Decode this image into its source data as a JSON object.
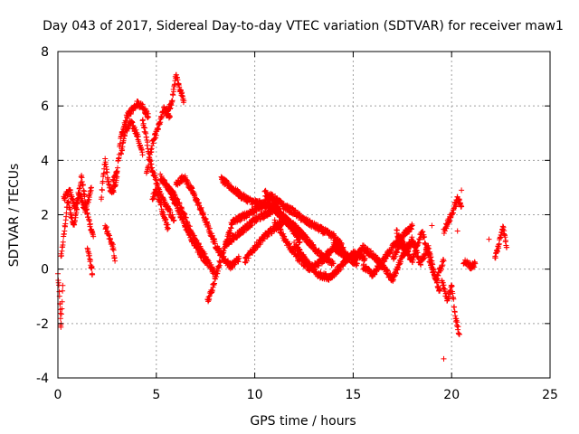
{
  "chart_data": {
    "type": "scatter",
    "title": "Day 043 of 2017, Sidereal Day-to-day VTEC variation (SDTVAR) for receiver maw1",
    "xlabel": "GPS time / hours",
    "ylabel": "SDTVAR / TECUs",
    "xlim": [
      0,
      25
    ],
    "ylim": [
      -4,
      8
    ],
    "xticks": [
      0,
      5,
      10,
      15,
      20,
      25
    ],
    "yticks": [
      -4,
      -2,
      0,
      2,
      4,
      6,
      8
    ],
    "xtick_labels": [
      "0",
      "5",
      "10",
      "15",
      "20",
      "25"
    ],
    "ytick_labels": [
      "-4",
      "-2",
      "0",
      "2",
      "4",
      "6",
      "8"
    ],
    "grid": true,
    "marker": "plus",
    "color": "#ff0000",
    "series": [
      {
        "name": "maw1",
        "tracks": [
          {
            "x": [
              0.0,
              0.1,
              0.15,
              0.25
            ],
            "y": [
              -0.2,
              -1.2,
              -2.2,
              -0.6
            ]
          },
          {
            "x": [
              0.15,
              0.3,
              0.5,
              0.8,
              1.1,
              1.4,
              1.7
            ],
            "y": [
              0.4,
              1.2,
              2.5,
              1.6,
              2.8,
              2.1,
              3.0
            ]
          },
          {
            "x": [
              0.3,
              0.6,
              0.9,
              1.2,
              1.5,
              1.8
            ],
            "y": [
              2.6,
              2.9,
              2.2,
              3.4,
              2.0,
              1.2
            ]
          },
          {
            "x": [
              1.5,
              1.6,
              1.7,
              1.75
            ],
            "y": [
              0.8,
              0.4,
              0.1,
              -0.2
            ]
          },
          {
            "x": [
              2.2,
              2.4,
              2.6,
              2.8,
              3.0
            ],
            "y": [
              2.6,
              4.0,
              3.0,
              2.8,
              3.4
            ]
          },
          {
            "x": [
              2.4,
              2.6,
              2.8,
              2.9
            ],
            "y": [
              1.6,
              1.2,
              0.8,
              0.3
            ]
          },
          {
            "x": [
              2.8,
              3.0,
              3.2,
              3.5,
              3.8,
              4.0,
              4.3,
              4.6
            ],
            "y": [
              3.2,
              3.6,
              4.8,
              5.6,
              5.9,
              6.1,
              6.0,
              5.6
            ]
          },
          {
            "x": [
              3.2,
              3.4,
              3.7,
              4.0,
              4.3
            ],
            "y": [
              4.2,
              5.0,
              5.4,
              5.0,
              4.2
            ]
          },
          {
            "x": [
              4.3,
              4.5,
              4.7,
              5.0,
              5.3,
              5.6,
              5.9
            ],
            "y": [
              5.5,
              4.8,
              3.9,
              3.2,
              2.6,
              2.2,
              1.8
            ]
          },
          {
            "x": [
              4.5,
              4.8,
              5.1,
              5.4,
              5.7
            ],
            "y": [
              3.5,
              4.6,
              5.2,
              5.9,
              5.6
            ]
          },
          {
            "x": [
              4.8,
              5.0,
              5.2,
              5.4,
              5.6
            ],
            "y": [
              2.6,
              2.9,
              2.4,
              1.9,
              1.5
            ]
          },
          {
            "x": [
              5.5,
              5.8,
              6.0,
              6.2,
              6.4
            ],
            "y": [
              5.6,
              6.2,
              7.2,
              6.6,
              6.2
            ]
          },
          {
            "x": [
              5.2,
              5.6,
              6.0,
              6.4,
              6.8,
              7.2,
              7.6
            ],
            "y": [
              3.4,
              3.0,
              2.4,
              1.7,
              1.1,
              0.6,
              0.2
            ]
          },
          {
            "x": [
              5.6,
              6.0,
              6.4,
              6.8,
              7.2,
              7.6,
              8.0
            ],
            "y": [
              3.0,
              2.6,
              2.0,
              1.3,
              0.8,
              0.3,
              -0.2
            ]
          },
          {
            "x": [
              6.0,
              6.4,
              6.8,
              7.2,
              7.6,
              8.0,
              8.4,
              8.8,
              9.2
            ],
            "y": [
              3.1,
              3.4,
              2.9,
              2.3,
              1.6,
              0.9,
              0.4,
              0.1,
              0.4
            ]
          },
          {
            "x": [
              7.6,
              7.8,
              8.0,
              8.2,
              8.5,
              8.8
            ],
            "y": [
              -1.2,
              -0.8,
              -0.3,
              0.2,
              0.9,
              1.5
            ]
          },
          {
            "x": [
              8.3,
              8.8,
              9.3,
              9.8,
              10.3,
              10.8,
              11.3,
              11.8
            ],
            "y": [
              3.3,
              3.0,
              2.7,
              2.5,
              2.4,
              2.3,
              2.0,
              1.6
            ]
          },
          {
            "x": [
              8.5,
              9.0,
              9.5,
              10.0,
              10.5,
              11.0,
              11.5,
              12.0,
              12.5,
              13.0,
              13.5,
              14.0
            ],
            "y": [
              0.9,
              1.2,
              1.5,
              1.8,
              2.0,
              2.2,
              1.9,
              1.5,
              1.2,
              0.8,
              0.4,
              0.2
            ]
          },
          {
            "x": [
              8.8,
              9.3,
              9.8,
              10.3,
              10.8,
              11.3,
              11.8,
              12.3
            ],
            "y": [
              1.7,
              1.9,
              2.1,
              2.3,
              2.6,
              2.1,
              1.6,
              1.0
            ]
          },
          {
            "x": [
              9.5,
              10.0,
              10.5,
              11.0,
              11.5,
              12.0,
              12.5,
              13.0
            ],
            "y": [
              0.3,
              0.8,
              1.2,
              1.5,
              1.8,
              1.6,
              1.2,
              0.8
            ]
          },
          {
            "x": [
              10.5,
              11.0,
              11.5,
              12.0,
              12.5,
              13.0,
              13.5,
              14.0,
              14.5
            ],
            "y": [
              2.8,
              2.6,
              2.3,
              2.1,
              1.8,
              1.6,
              1.4,
              1.2,
              0.8
            ]
          },
          {
            "x": [
              11.0,
              11.6,
              12.2,
              12.8,
              13.4,
              14.0,
              14.6,
              15.2
            ],
            "y": [
              1.8,
              1.0,
              0.4,
              0.0,
              0.3,
              0.8,
              0.5,
              0.2
            ]
          },
          {
            "x": [
              12.0,
              12.6,
              13.2,
              13.8,
              14.4,
              15.0,
              15.6
            ],
            "y": [
              0.9,
              0.3,
              -0.2,
              -0.3,
              0.1,
              0.6,
              0.4
            ]
          },
          {
            "x": [
              14.0,
              14.5,
              15.0,
              15.5,
              16.0,
              16.5,
              17.0,
              17.5,
              18.0
            ],
            "y": [
              0.9,
              0.6,
              0.3,
              0.8,
              0.5,
              0.1,
              -0.4,
              0.5,
              1.0
            ]
          },
          {
            "x": [
              15.5,
              16.0,
              16.5,
              17.0,
              17.5,
              18.0
            ],
            "y": [
              0.1,
              -0.2,
              0.3,
              0.8,
              1.2,
              1.6
            ]
          },
          {
            "x": [
              17.2,
              17.6,
              18.0,
              18.4,
              18.8,
              19.2,
              19.6
            ],
            "y": [
              1.4,
              0.6,
              1.1,
              0.2,
              0.8,
              -0.4,
              0.3
            ]
          },
          {
            "x": [
              17.0,
              17.5,
              18.0,
              18.5,
              19.0,
              19.4
            ],
            "y": [
              0.4,
              1.0,
              0.3,
              1.4,
              0.0,
              -0.8
            ]
          },
          {
            "x": [
              19.5,
              19.8,
              20.0,
              20.2,
              20.4
            ],
            "y": [
              -0.4,
              -1.2,
              -0.6,
              -1.8,
              -2.4
            ]
          },
          {
            "x": [
              19.6,
              20.0,
              20.3,
              20.5
            ],
            "y": [
              1.4,
              2.0,
              2.6,
              2.3
            ]
          },
          {
            "x": [
              20.6,
              20.8,
              21.0,
              21.2
            ],
            "y": [
              0.3,
              0.2,
              0.1,
              0.2
            ]
          },
          {
            "x": [
              22.2,
              22.4,
              22.6,
              22.8
            ],
            "y": [
              0.4,
              0.9,
              1.6,
              0.8
            ]
          }
        ],
        "extra_points": [
          {
            "x": 19.6,
            "y": -3.3
          },
          {
            "x": 20.3,
            "y": 1.4
          },
          {
            "x": 20.5,
            "y": 2.9
          },
          {
            "x": 21.1,
            "y": 0.2
          },
          {
            "x": 21.9,
            "y": 1.1
          },
          {
            "x": 19.0,
            "y": 1.6
          }
        ]
      }
    ]
  }
}
